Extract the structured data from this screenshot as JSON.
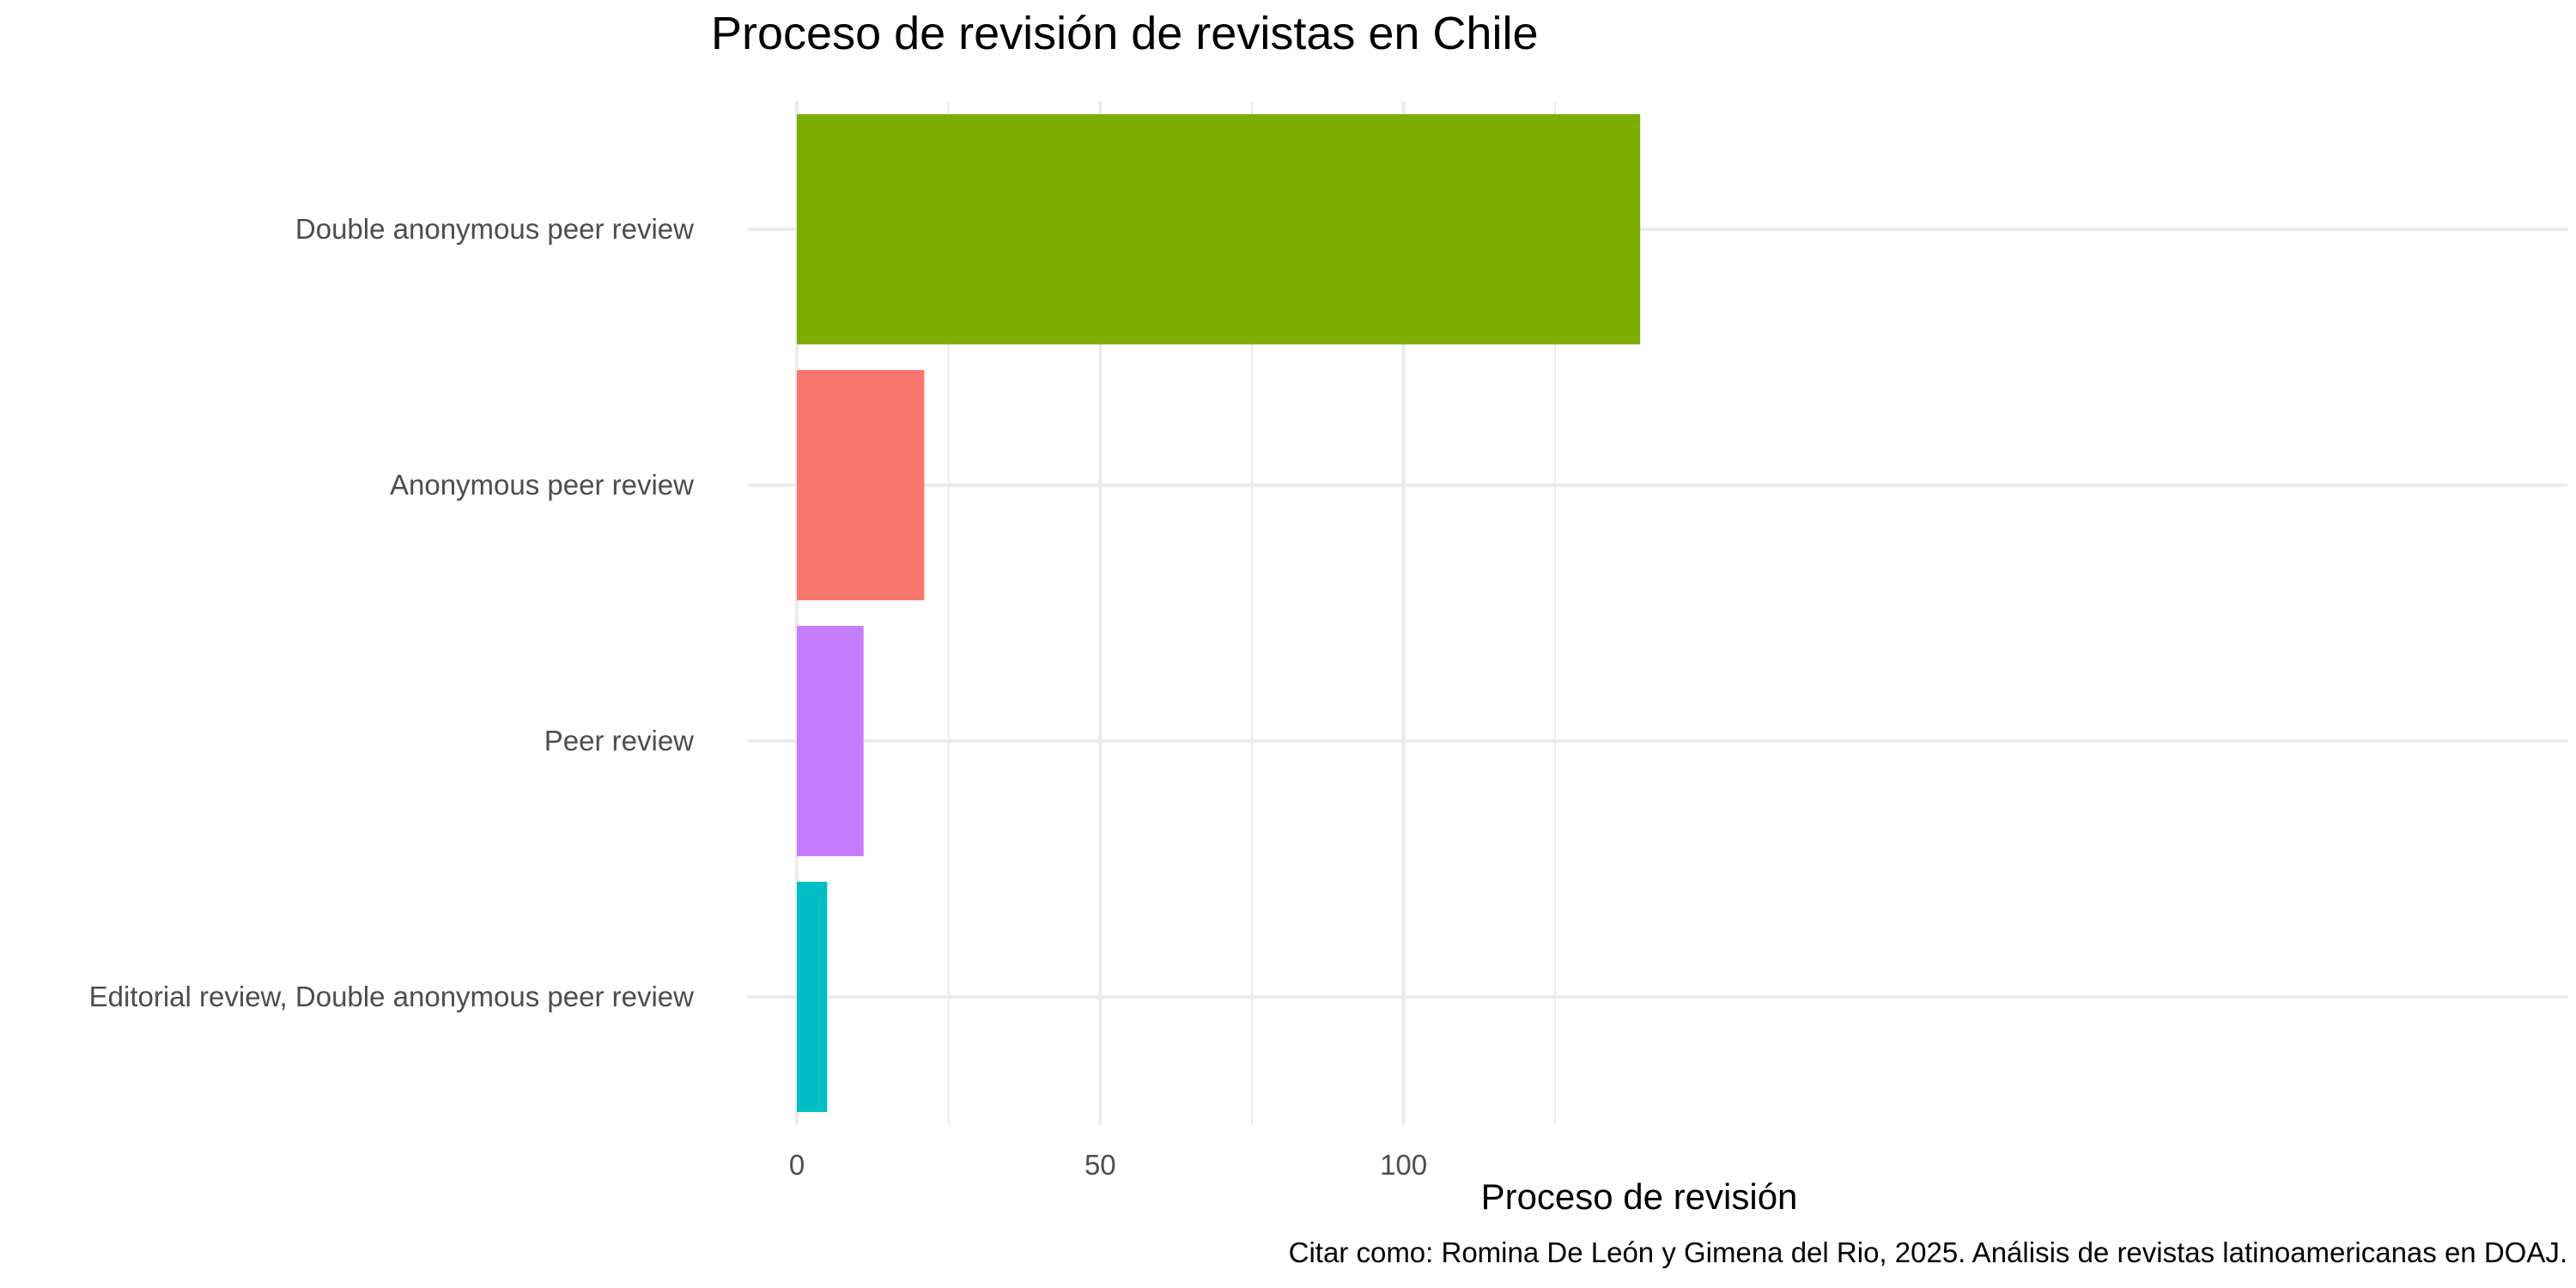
{
  "chart_data": {
    "type": "bar",
    "orientation": "horizontal",
    "title": "Proceso de revisión de revistas en Chile",
    "xlabel": "Proceso de revisión",
    "ylabel": "",
    "categories": [
      "Double anonymous peer review",
      "Anonymous peer review",
      "Peer review",
      "Editorial review, Double anonymous peer review"
    ],
    "values": [
      139,
      21,
      11,
      5
    ],
    "colors": [
      "#7CAE00",
      "#F8766D",
      "#C77CFF",
      "#00BFC4"
    ],
    "xlim": [
      0,
      146
    ],
    "xticks": [
      0,
      50,
      100
    ],
    "grid": true,
    "legend": false,
    "caption": "Citar como: Romina De León y Gimena del Rio, 2025. Análisis de revistas latinoamericanas en DOAJ."
  }
}
